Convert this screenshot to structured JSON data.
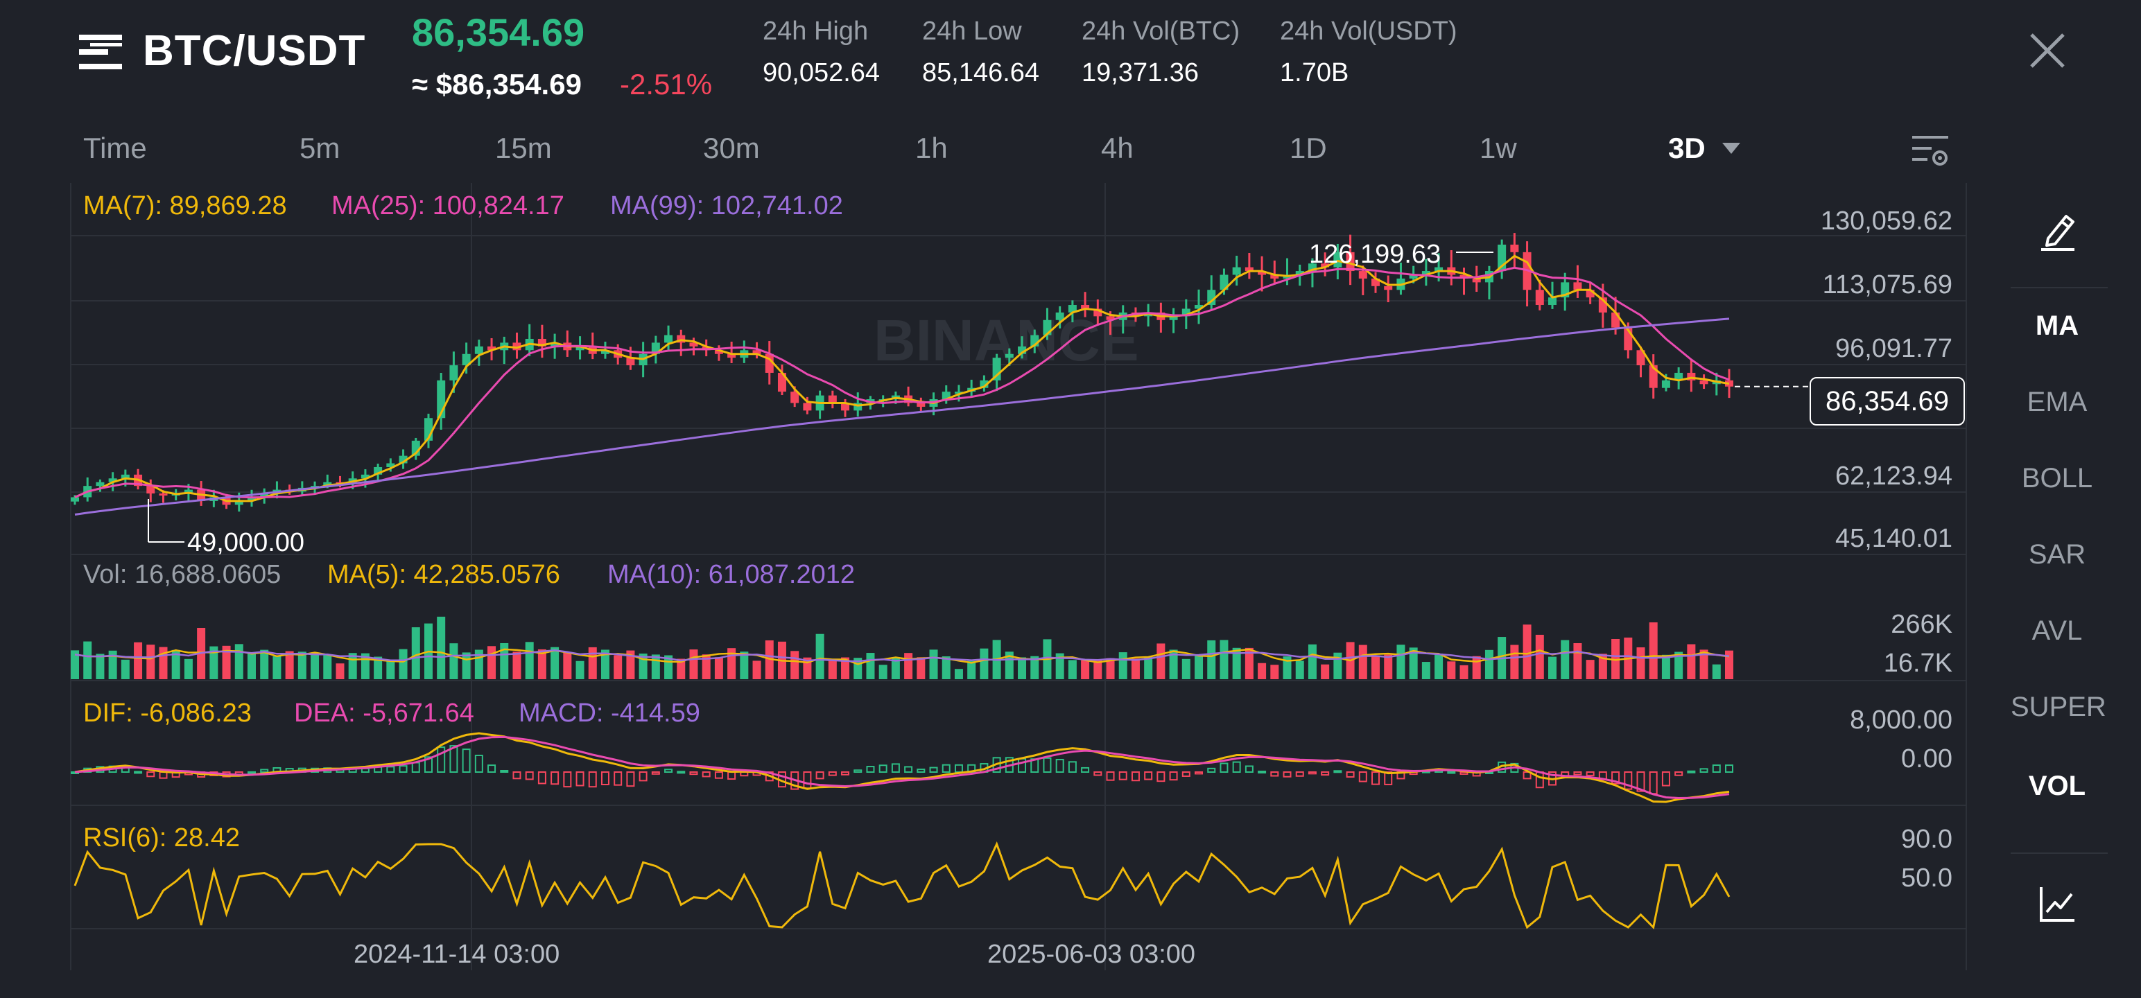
{
  "header": {
    "pair": "BTC/USDT",
    "last_price": "86,354.69",
    "approx_price": "≈ $86,354.69",
    "change_pct": "-2.51%",
    "stats": [
      {
        "label": "24h High",
        "value": "90,052.64"
      },
      {
        "label": "24h Low",
        "value": "85,146.64"
      },
      {
        "label": "24h Vol(BTC)",
        "value": "19,371.36"
      },
      {
        "label": "24h Vol(USDT)",
        "value": "1.70B"
      }
    ]
  },
  "intervals": [
    "Time",
    "5m",
    "15m",
    "30m",
    "1h",
    "4h",
    "1D",
    "1w",
    "3D"
  ],
  "active_interval": "3D",
  "sidebar": [
    "MA",
    "EMA",
    "BOLL",
    "SAR",
    "AVL",
    "SUPER",
    "VOL"
  ],
  "sidebar_active": [
    "MA",
    "VOL"
  ],
  "main_indicators": [
    {
      "text": "MA(7): 89,869.28",
      "color": "#f0b90b"
    },
    {
      "text": "MA(25): 100,824.17",
      "color": "#e94bb0"
    },
    {
      "text": "MA(99): 102,741.02",
      "color": "#9b6fdc"
    }
  ],
  "price_axis": [
    "130,059.62",
    "113,075.69",
    "96,091.77",
    "62,123.94",
    "45,140.01"
  ],
  "current_price_tag": "86,354.69",
  "high_marker": "126,199.63",
  "low_marker": "49,000.00",
  "watermark": "BINANCE",
  "vol_indicators": [
    {
      "text": "Vol: 16,688.0605",
      "color": "#9aa0a8"
    },
    {
      "text": "MA(5): 42,285.0576",
      "color": "#f0b90b"
    },
    {
      "text": "MA(10): 61,087.2012",
      "color": "#9b6fdc"
    }
  ],
  "vol_axis": [
    "266K",
    "16.7K"
  ],
  "macd_indicators": [
    {
      "text": "DIF: -6,086.23",
      "color": "#f0b90b"
    },
    {
      "text": "DEA: -5,671.64",
      "color": "#e94bb0"
    },
    {
      "text": "MACD: -414.59",
      "color": "#9b6fdc"
    }
  ],
  "macd_axis": [
    "8,000.00",
    "0.00"
  ],
  "rsi_indicator": {
    "text": "RSI(6): 28.42",
    "color": "#f0b90b"
  },
  "rsi_axis": [
    "90.0",
    "50.0"
  ],
  "time_axis": [
    "2024-11-14 03:00",
    "2025-06-03 03:00"
  ],
  "chart_data": {
    "type": "candlestick",
    "price_range": [
      45140.01,
      130059.62
    ],
    "series_close": [
      57000,
      60000,
      61000,
      62000,
      63000,
      60000,
      58000,
      57500,
      58000,
      59000,
      56000,
      57000,
      55000,
      56000,
      57000,
      58000,
      59000,
      58500,
      59500,
      60000,
      61000,
      60500,
      62000,
      63000,
      65000,
      66000,
      68000,
      72000,
      78000,
      88000,
      92000,
      95000,
      97000,
      96000,
      98000,
      96000,
      99000,
      97000,
      98000,
      96000,
      97000,
      95000,
      96000,
      94000,
      92000,
      95000,
      98000,
      100000,
      98000,
      97000,
      96000,
      95000,
      94000,
      96000,
      95000,
      90000,
      85000,
      82000,
      80000,
      84000,
      82000,
      80000,
      82000,
      83000,
      83000,
      84000,
      82000,
      81000,
      83000,
      85000,
      85000,
      86000,
      88000,
      94000,
      95000,
      97000,
      100000,
      104000,
      106000,
      108000,
      107000,
      105000,
      104000,
      106000,
      105000,
      106000,
      104000,
      105000,
      107000,
      108000,
      112000,
      116000,
      118000,
      117000,
      116000,
      115000,
      116000,
      117000,
      119000,
      118000,
      122000,
      117000,
      115000,
      113000,
      112000,
      115000,
      116000,
      117000,
      118000,
      116000,
      115000,
      114000,
      117000,
      124000,
      122000,
      112000,
      108000,
      110000,
      114000,
      112000,
      110000,
      106000,
      102000,
      96000,
      92000,
      86000,
      88000,
      90000,
      88000,
      87000,
      88000,
      86354.69
    ]
  }
}
